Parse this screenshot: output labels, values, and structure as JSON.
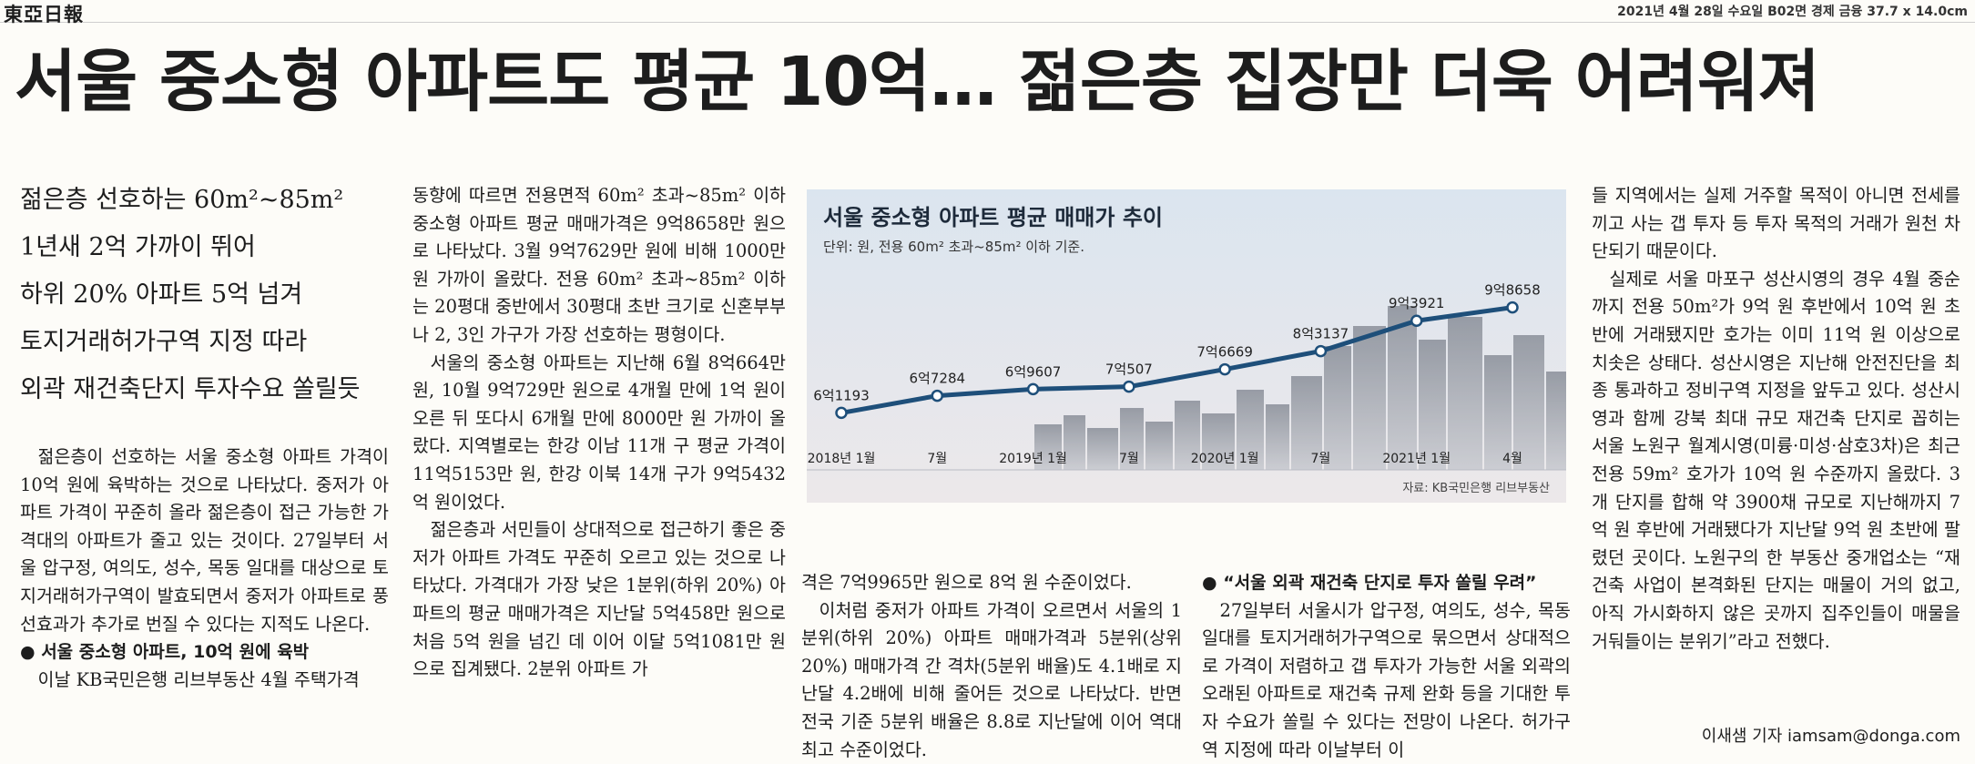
{
  "masthead": {
    "logo": "東亞日報",
    "dateline": "2021년 4월 28일 수요일 B02면 경제 금융 37.7 x 14.0cm"
  },
  "headline": "서울 중소형 아파트도 평균 10억… 젊은층 집장만 더욱 어려워져",
  "subheads": [
    "젊은층 선호하는 60m²~85m²",
    "1년새 2억 가까이 뛰어",
    "하위 20% 아파트 5억 넘겨",
    "토지거래허가구역 지정 따라",
    "외곽 재건축단지 투자수요 쏠릴듯"
  ],
  "col1": {
    "p1": "젊은층이 선호하는 서울 중소형 아파트 가격이 10억 원에 육박하는 것으로 나타났다. 중저가 아파트 가격이 꾸준히 올라 젊은층이 접근 가능한 가격대의 아파트가 줄고 있는 것이다. 27일부터 서울 압구정, 여의도, 성수, 목동 일대를 대상으로 토지거래허가구역이 발효되면서 중저가 아파트로 풍선효과가 추가로 번질 수 있다는 지적도 나온다.",
    "section": "● 서울 중소형 아파트, 10억 원에 육박",
    "p2": "이날 KB국민은행 리브부동산 4월 주택가격"
  },
  "col2": {
    "p1": "동향에 따르면 전용면적 60m² 초과~85m² 이하 중소형 아파트 평균 매매가격은 9억8658만 원으로 나타났다. 3월 9억7629만 원에 비해 1000만 원 가까이 올랐다. 전용 60m² 초과~85m² 이하는 20평대 중반에서 30평대 초반 크기로 신혼부부나 2, 3인 가구가 가장 선호하는 평형이다.",
    "p2": "서울의 중소형 아파트는 지난해 6월 8억664만 원, 10월 9억729만 원으로 4개월 만에 1억 원이 오른 뒤 또다시 6개월 만에 8000만 원 가까이 올랐다. 지역별로는 한강 이남 11개 구 평균 가격이 11억5153만 원, 한강 이북 14개 구가 9억5432억 원이었다.",
    "p3": "젊은층과 서민들이 상대적으로 접근하기 좋은 중저가 아파트 가격도 꾸준히 오르고 있는 것으로 나타났다. 가격대가 가장 낮은 1분위(하위 20%) 아파트의 평균 매매가격은 지난달 5억458만 원으로 처음 5억 원을 넘긴 데 이어 이달 5억1081만 원으로 집계됐다. 2분위 아파트 가"
  },
  "col3": {
    "p1": "격은 7억9965만 원으로 8억 원 수준이었다.",
    "p2": "이처럼 중저가 아파트 가격이 오르면서 서울의 1분위(하위 20%) 아파트 매매가격과 5분위(상위 20%) 매매가격 간 격차(5분위 배율)도 4.1배로 지난달 4.2배에 비해 줄어든 것으로 나타났다. 반면 전국 기준 5분위 배율은 8.8로 지난달에 이어 역대 최고 수준이었다."
  },
  "col4": {
    "section": "● “서울 외곽 재건축 단지로 투자 쏠릴 우려”",
    "p1": "27일부터 서울시가 압구정, 여의도, 성수, 목동 일대를 토지거래허가구역으로 묶으면서 상대적으로 가격이 저렴하고 갭 투자가 가능한 서울 외곽의 오래된 아파트로 재건축 규제 완화 등을 기대한 투자 수요가 쏠릴 수 있다는 전망이 나온다. 허가구역 지정에 따라 이날부터 이"
  },
  "col5": {
    "p1": "들 지역에서는 실제 거주할 목적이 아니면 전세를 끼고 사는 갭 투자 등 투자 목적의 거래가 원천 차단되기 때문이다.",
    "p2": "실제로 서울 마포구 성산시영의 경우 4월 중순까지 전용 50m²가 9억 원 후반에서 10억 원 초반에 거래됐지만 호가는 이미 11억 원 이상으로 치솟은 상태다. 성산시영은 지난해 안전진단을 최종 통과하고 정비구역 지정을 앞두고 있다. 성산시영과 함께 강북 최대 규모 재건축 단지로 꼽히는 서울 노원구 월계시영(미륭·미성·삼호3차)은 최근 전용 59m² 호가가 10억 원 수준까지 올랐다. 3개 단지를 합해 약 3900채 규모로 지난해까지 7억 원 후반에 거래됐다가 지난달 9억 원 초반에 팔렸던 곳이다. 노원구의 한 부동산 중개업소는 “재건축 사업이 본격화된 단지는 매물이 거의 없고, 아직 가시화하지 않은 곳까지 집주인들이 매물을 거둬들이는 분위기”라고 전했다."
  },
  "byline": "이새샘 기자 iamsam@donga.com",
  "chart_data": {
    "type": "line",
    "title": "서울 중소형 아파트 평균 매매가 추이",
    "subtitle": "단위: 원, 전용 60m² 초과~85m² 이하 기준.",
    "source": "자료: KB국민은행 리브부동산",
    "x": [
      "2018년 1월",
      "7월",
      "2019년 1월",
      "7월",
      "2020년 1월",
      "7월",
      "2021년 1월",
      "4월"
    ],
    "values": [
      61193,
      67284,
      69607,
      70507,
      76669,
      83137,
      93921,
      98658
    ],
    "value_labels": [
      "6억1193",
      "6억7284",
      "6억9607",
      "7억507",
      "7억6669",
      "8억3137",
      "9억3921",
      "9억8658"
    ],
    "unit": "만원",
    "line_color": "#1e4f7a",
    "ylim": [
      50000,
      105000
    ]
  }
}
